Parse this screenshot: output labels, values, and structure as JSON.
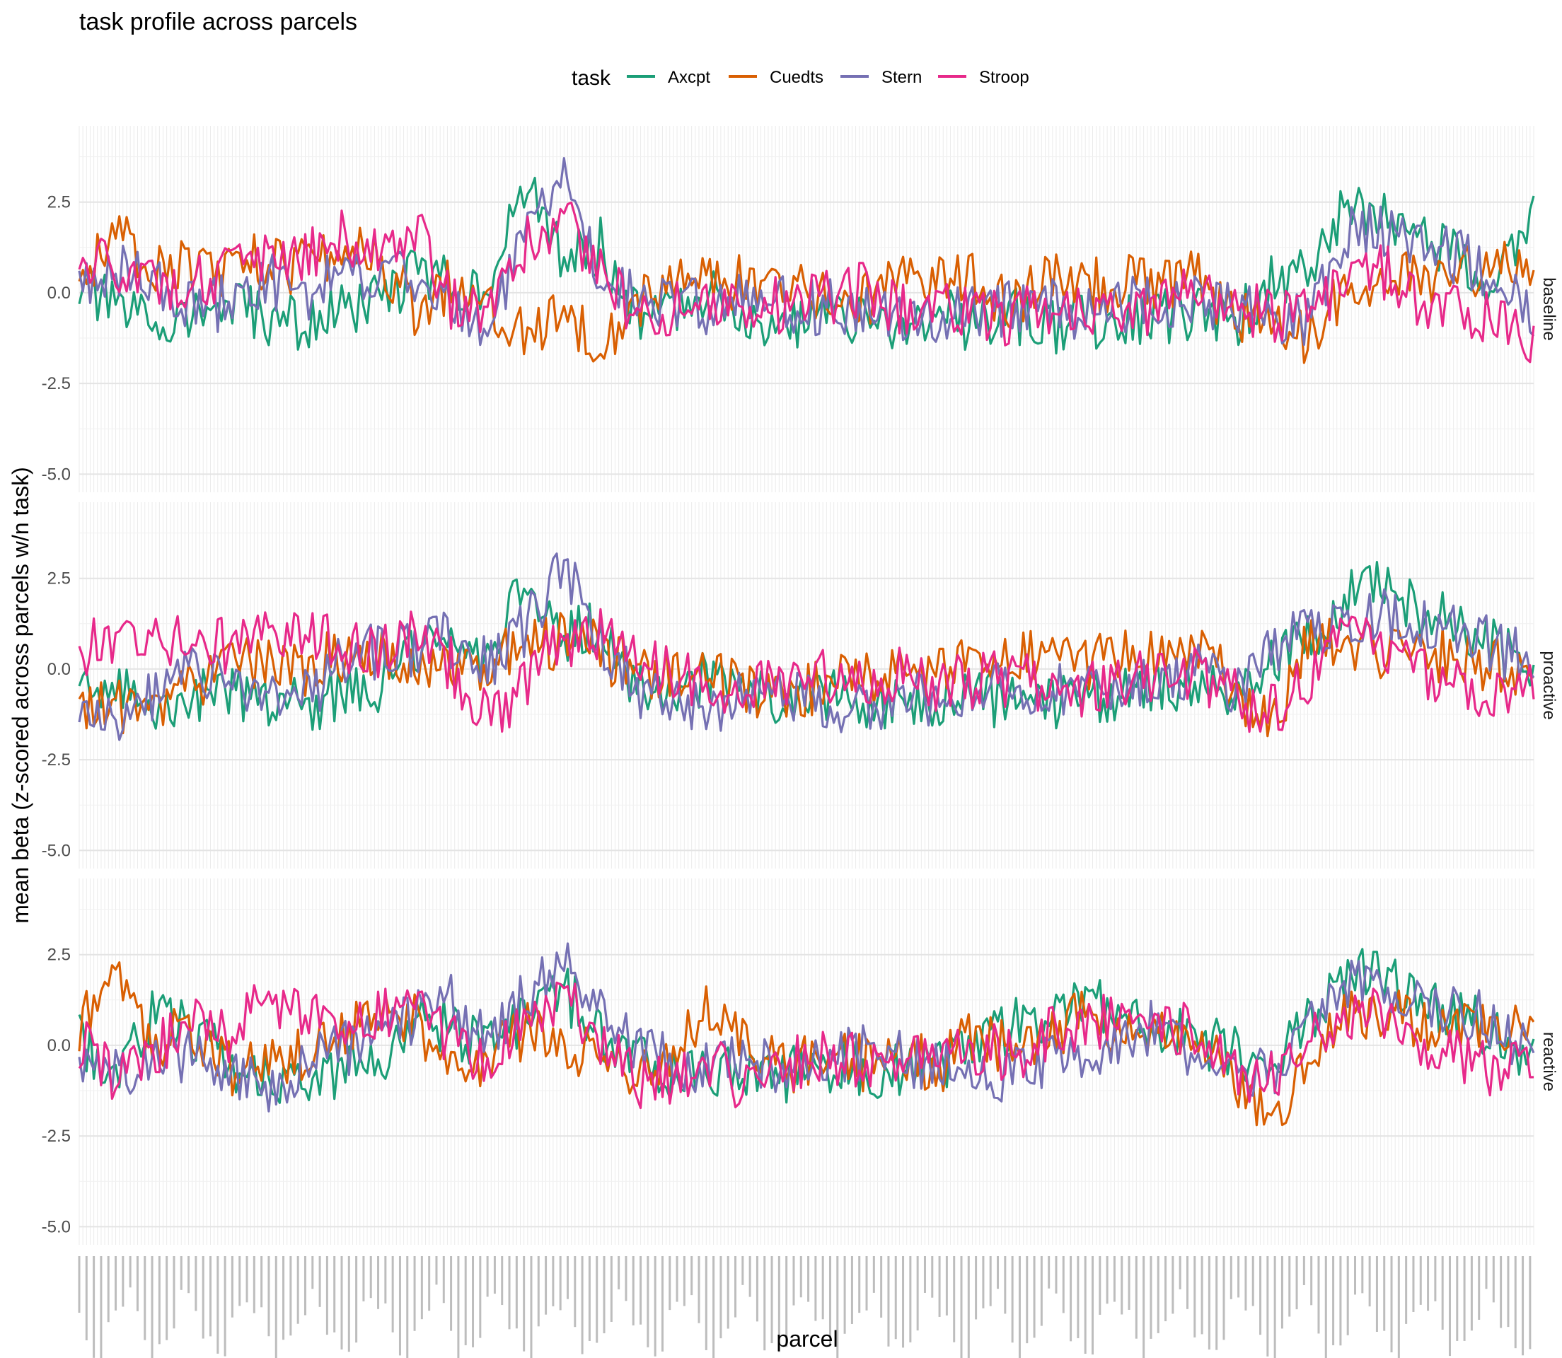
{
  "chart_data": {
    "type": "line",
    "title": "task profile across parcels",
    "xlabel": "parcel",
    "ylabel": "mean beta  (z-scored across parcels w/n task)",
    "legend": {
      "title": "task",
      "position": "top",
      "entries": [
        "Axcpt",
        "Cuedts",
        "Stern",
        "Stroop"
      ]
    },
    "colors": {
      "Axcpt": "#1B9E77",
      "Cuedts": "#D95F02",
      "Stern": "#7570B3",
      "Stroop": "#E7298A"
    },
    "facets": [
      "baseline",
      "proactive",
      "reactive"
    ],
    "ylim": [
      -5.5,
      4.6
    ],
    "yticks": [
      -5.0,
      -2.5,
      0.0,
      2.5
    ],
    "ytick_labels": [
      "-5.0",
      "-2.5",
      "0.0",
      "2.5"
    ],
    "n_parcels": 400,
    "grid": true,
    "series_anchors_note": "values sampled at every 10th parcel index (0..399); lines interpolated between anchors",
    "series": [
      {
        "facet": "baseline",
        "name": "Axcpt",
        "values": [
          0.2,
          -0.5,
          -0.8,
          -0.6,
          -0.4,
          -0.7,
          -0.9,
          -0.5,
          -0.3,
          0.6,
          0.2,
          0.3,
          2.9,
          1.0,
          1.3,
          -0.7,
          -0.5,
          0.2,
          -0.8,
          -0.9,
          -0.6,
          -0.8,
          -0.9,
          -0.7,
          -0.8,
          -0.6,
          -0.9,
          -0.8,
          -0.7,
          -0.6,
          -0.6,
          -0.8,
          0.3,
          0.8,
          2.6,
          2.0,
          1.4,
          1.0,
          0.3,
          2.5
        ]
      },
      {
        "facet": "baseline",
        "name": "Cuedts",
        "values": [
          0.5,
          1.5,
          0.8,
          0.7,
          0.6,
          0.9,
          0.7,
          1.2,
          1.0,
          -0.4,
          0.3,
          -0.2,
          -1.2,
          -0.5,
          -1.3,
          -0.2,
          0.3,
          0.2,
          0.4,
          0.1,
          -0.2,
          -0.3,
          0.6,
          0.5,
          0.3,
          -0.4,
          0.7,
          0.2,
          0.3,
          0.4,
          0.4,
          -0.6,
          -0.9,
          -1.4,
          0.2,
          0.5,
          0.3,
          0.6,
          0.8,
          0.9
        ]
      },
      {
        "facet": "baseline",
        "name": "Stern",
        "values": [
          0.3,
          0.6,
          0.2,
          -0.4,
          -0.3,
          0.4,
          -0.2,
          0.6,
          0.4,
          0.5,
          -0.5,
          -1.0,
          1.6,
          3.1,
          0.6,
          -0.3,
          -0.2,
          -0.5,
          -0.2,
          -0.3,
          -0.4,
          -0.5,
          -0.6,
          -0.7,
          -0.5,
          -0.4,
          -0.3,
          -0.6,
          -0.4,
          -0.2,
          -0.3,
          -0.4,
          -0.8,
          -0.7,
          1.6,
          1.8,
          1.3,
          1.0,
          0.5,
          -0.8
        ]
      },
      {
        "facet": "baseline",
        "name": "Stroop",
        "values": [
          0.6,
          0.8,
          0.2,
          0.4,
          0.5,
          0.8,
          1.1,
          1.6,
          1.2,
          1.8,
          -0.3,
          -0.6,
          1.5,
          1.9,
          0.8,
          -0.9,
          -0.4,
          -0.1,
          -0.5,
          -0.3,
          -0.2,
          0.1,
          -0.4,
          -0.3,
          -0.6,
          -0.7,
          -0.4,
          -0.5,
          -0.6,
          -0.5,
          0.3,
          -0.4,
          -0.6,
          -0.4,
          0.4,
          0.6,
          -0.3,
          -0.5,
          -0.7,
          -1.2
        ]
      },
      {
        "facet": "proactive",
        "name": "Axcpt",
        "values": [
          -0.5,
          -0.7,
          -1.0,
          -0.8,
          -0.6,
          -0.9,
          -1.0,
          -0.7,
          -0.5,
          0.4,
          0.6,
          0.3,
          2.6,
          1.0,
          1.1,
          -0.6,
          -0.5,
          -0.3,
          -0.8,
          -0.9,
          -0.7,
          -0.9,
          -1.0,
          -0.8,
          -0.9,
          -0.8,
          -1.0,
          -0.9,
          -0.6,
          -0.5,
          -0.4,
          -0.5,
          0.2,
          0.8,
          2.1,
          2.2,
          1.5,
          1.2,
          0.6,
          -0.2
        ]
      },
      {
        "facet": "proactive",
        "name": "Cuedts",
        "values": [
          -0.9,
          -1.1,
          -1.2,
          -0.4,
          0.2,
          0.1,
          -0.1,
          0.4,
          0.6,
          0.1,
          -0.2,
          0.3,
          0.6,
          0.8,
          0.5,
          -0.2,
          -0.1,
          -0.3,
          -0.6,
          -0.8,
          -0.5,
          -0.3,
          -0.2,
          -0.2,
          0.1,
          0.3,
          0.4,
          0.2,
          0.5,
          0.2,
          0.6,
          -0.5,
          -1.7,
          0.9,
          0.7,
          0.5,
          0.3,
          0.4,
          0.1,
          -0.2
        ]
      },
      {
        "facet": "proactive",
        "name": "Stern",
        "values": [
          -0.8,
          -1.4,
          -0.7,
          0.0,
          -0.4,
          -0.6,
          -0.9,
          0.3,
          0.5,
          0.6,
          0.8,
          0.2,
          1.2,
          2.8,
          0.8,
          -0.6,
          -0.7,
          -1.1,
          -0.7,
          -0.8,
          -0.9,
          -1.0,
          -0.9,
          -0.8,
          -0.7,
          -0.6,
          -0.5,
          -0.4,
          -0.3,
          -0.2,
          -0.1,
          -0.5,
          0.4,
          1.1,
          1.4,
          1.6,
          1.3,
          1.1,
          0.6,
          0.2
        ]
      },
      {
        "facet": "proactive",
        "name": "Stroop",
        "values": [
          0.5,
          1.0,
          0.6,
          0.8,
          0.6,
          1.2,
          1.0,
          0.6,
          0.5,
          1.2,
          0.1,
          -1.5,
          -0.2,
          0.8,
          1.0,
          0.2,
          -0.3,
          -0.4,
          -0.6,
          -0.3,
          -0.1,
          -0.4,
          -0.2,
          -0.5,
          -0.3,
          -0.3,
          -0.4,
          -0.6,
          -0.2,
          -0.3,
          -0.1,
          -0.8,
          -1.2,
          -0.3,
          0.8,
          0.6,
          -0.2,
          -0.4,
          -0.7,
          -0.6
        ]
      },
      {
        "facet": "reactive",
        "name": "Axcpt",
        "values": [
          0.2,
          -0.8,
          0.9,
          0.4,
          -0.5,
          -0.9,
          -1.1,
          -0.8,
          -0.6,
          0.9,
          0.4,
          0.1,
          0.9,
          1.5,
          0.3,
          -0.4,
          -0.8,
          -0.6,
          -0.9,
          -0.8,
          -0.5,
          -0.7,
          -0.6,
          -0.4,
          -0.3,
          0.6,
          0.9,
          1.3,
          0.8,
          0.5,
          0.2,
          -0.3,
          -0.2,
          0.6,
          1.8,
          2.0,
          1.3,
          0.9,
          0.2,
          -0.6
        ]
      },
      {
        "facet": "reactive",
        "name": "Cuedts",
        "values": [
          0.6,
          1.8,
          0.1,
          0.3,
          -0.6,
          -0.4,
          -0.2,
          0.3,
          0.9,
          0.8,
          -0.7,
          -0.3,
          0.4,
          0.2,
          -0.6,
          -0.8,
          -0.3,
          1.2,
          -0.4,
          -0.6,
          -0.2,
          -0.5,
          -0.3,
          -0.6,
          0.2,
          -0.1,
          0.3,
          0.8,
          0.5,
          0.6,
          0.4,
          -1.2,
          -2.0,
          -0.2,
          0.8,
          1.0,
          0.5,
          0.7,
          0.4,
          0.9
        ]
      },
      {
        "facet": "reactive",
        "name": "Stern",
        "values": [
          -0.6,
          -0.9,
          -0.4,
          -0.3,
          -0.6,
          -1.3,
          -0.5,
          -0.2,
          0.4,
          0.7,
          1.2,
          0.1,
          1.4,
          2.4,
          1.2,
          -0.2,
          -0.4,
          -0.6,
          -0.5,
          -0.7,
          -0.3,
          -0.2,
          -0.4,
          -0.5,
          -0.6,
          -0.8,
          -0.3,
          -0.1,
          0.2,
          0.5,
          -0.4,
          -1.0,
          -0.8,
          0.9,
          1.6,
          1.8,
          1.2,
          1.0,
          0.6,
          -0.4
        ]
      },
      {
        "facet": "reactive",
        "name": "Stroop",
        "values": [
          0.1,
          -0.9,
          -0.2,
          0.5,
          0.2,
          1.2,
          0.7,
          0.4,
          0.8,
          1.1,
          0.2,
          -0.6,
          0.6,
          1.3,
          0.2,
          -1.1,
          -0.9,
          -0.4,
          -1.3,
          -0.6,
          -0.2,
          -0.5,
          -0.4,
          0.2,
          -0.1,
          -0.3,
          0.4,
          0.6,
          0.8,
          0.5,
          0.3,
          -0.7,
          -0.9,
          0.4,
          0.9,
          0.7,
          0.2,
          -0.4,
          -0.8,
          -0.6
        ]
      }
    ]
  }
}
